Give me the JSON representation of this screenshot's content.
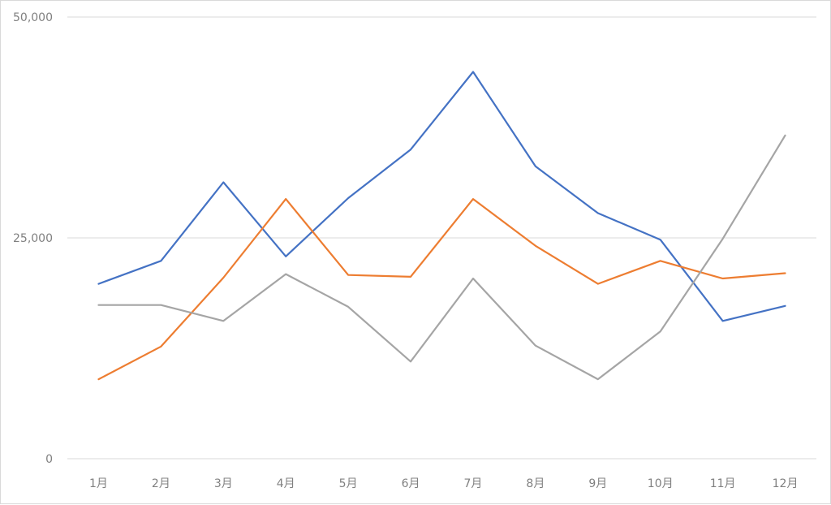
{
  "chart_data": {
    "type": "line",
    "categories": [
      "1月",
      "2月",
      "3月",
      "4月",
      "5月",
      "6月",
      "7月",
      "8月",
      "9月",
      "10月",
      "11月",
      "12月"
    ],
    "series": [
      {
        "color": "#4472c4",
        "values": [
          19800,
          22400,
          31300,
          22900,
          29500,
          35000,
          43800,
          33100,
          27800,
          24800,
          15600,
          17300
        ]
      },
      {
        "color": "#ed7d31",
        "values": [
          9000,
          12700,
          20500,
          29400,
          20800,
          20600,
          29400,
          24100,
          19800,
          22400,
          20400,
          21000
        ]
      },
      {
        "color": "#a5a5a5",
        "values": [
          17400,
          17400,
          15600,
          20900,
          17200,
          11000,
          20400,
          12800,
          9000,
          14400,
          24900,
          36600
        ]
      }
    ],
    "ylim": [
      0,
      50000
    ],
    "yticks": [
      "0",
      "25,000",
      "50,000"
    ],
    "ytick_values": [
      0,
      25000,
      50000
    ],
    "grid": true,
    "title": "",
    "xlabel": "",
    "ylabel": ""
  }
}
